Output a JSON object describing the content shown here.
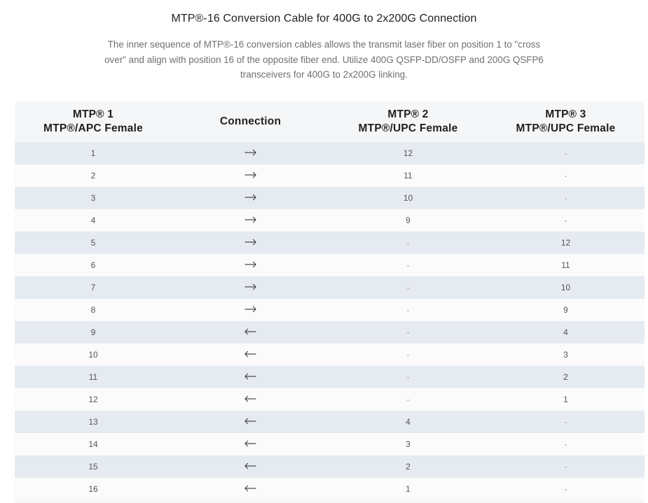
{
  "title": "MTP®-16 Conversion Cable for 400G to 2x200G Connection",
  "description": "The inner sequence of MTP®-16 conversion cables allows the transmit laser fiber on position 1 to \"cross over\" and align with position 16 of the opposite fiber end. Utilize 400G QSFP-DD/OSFP and 200G QSFP6 transceivers for 400G to 2x200G linking.",
  "table": {
    "headers": [
      {
        "line1": "MTP® 1",
        "line2": "MTP®/APC Female"
      },
      {
        "line1": "Connection",
        "line2": ""
      },
      {
        "line1": "MTP® 2",
        "line2": "MTP®/UPC Female"
      },
      {
        "line1": "MTP® 3",
        "line2": "MTP®/UPC Female"
      }
    ],
    "rows": [
      {
        "mtp1": "1",
        "connection": "→",
        "mtp2": "12",
        "mtp3": "-"
      },
      {
        "mtp1": "2",
        "connection": "→",
        "mtp2": "11",
        "mtp3": "-"
      },
      {
        "mtp1": "3",
        "connection": "→",
        "mtp2": "10",
        "mtp3": "-"
      },
      {
        "mtp1": "4",
        "connection": "→",
        "mtp2": "9",
        "mtp3": "-"
      },
      {
        "mtp1": "5",
        "connection": "→",
        "mtp2": "-",
        "mtp3": "12"
      },
      {
        "mtp1": "6",
        "connection": "→",
        "mtp2": "-",
        "mtp3": "11"
      },
      {
        "mtp1": "7",
        "connection": "→",
        "mtp2": "-",
        "mtp3": "10"
      },
      {
        "mtp1": "8",
        "connection": "→",
        "mtp2": "-",
        "mtp3": "9"
      },
      {
        "mtp1": "9",
        "connection": "←",
        "mtp2": "-",
        "mtp3": "4"
      },
      {
        "mtp1": "10",
        "connection": "←",
        "mtp2": "-",
        "mtp3": "3"
      },
      {
        "mtp1": "11",
        "connection": "←",
        "mtp2": "-",
        "mtp3": "2"
      },
      {
        "mtp1": "12",
        "connection": "←",
        "mtp2": "-",
        "mtp3": "1"
      },
      {
        "mtp1": "13",
        "connection": "←",
        "mtp2": "4",
        "mtp3": "-"
      },
      {
        "mtp1": "14",
        "connection": "←",
        "mtp2": "3",
        "mtp3": "-"
      },
      {
        "mtp1": "15",
        "connection": "←",
        "mtp2": "2",
        "mtp3": "-"
      },
      {
        "mtp1": "16",
        "connection": "←",
        "mtp2": "1",
        "mtp3": "-"
      }
    ]
  },
  "colors": {
    "row_stripe": "#e5ebf1",
    "row_plain": "#fbfbfb",
    "header_bg": "#f5f6f7"
  }
}
